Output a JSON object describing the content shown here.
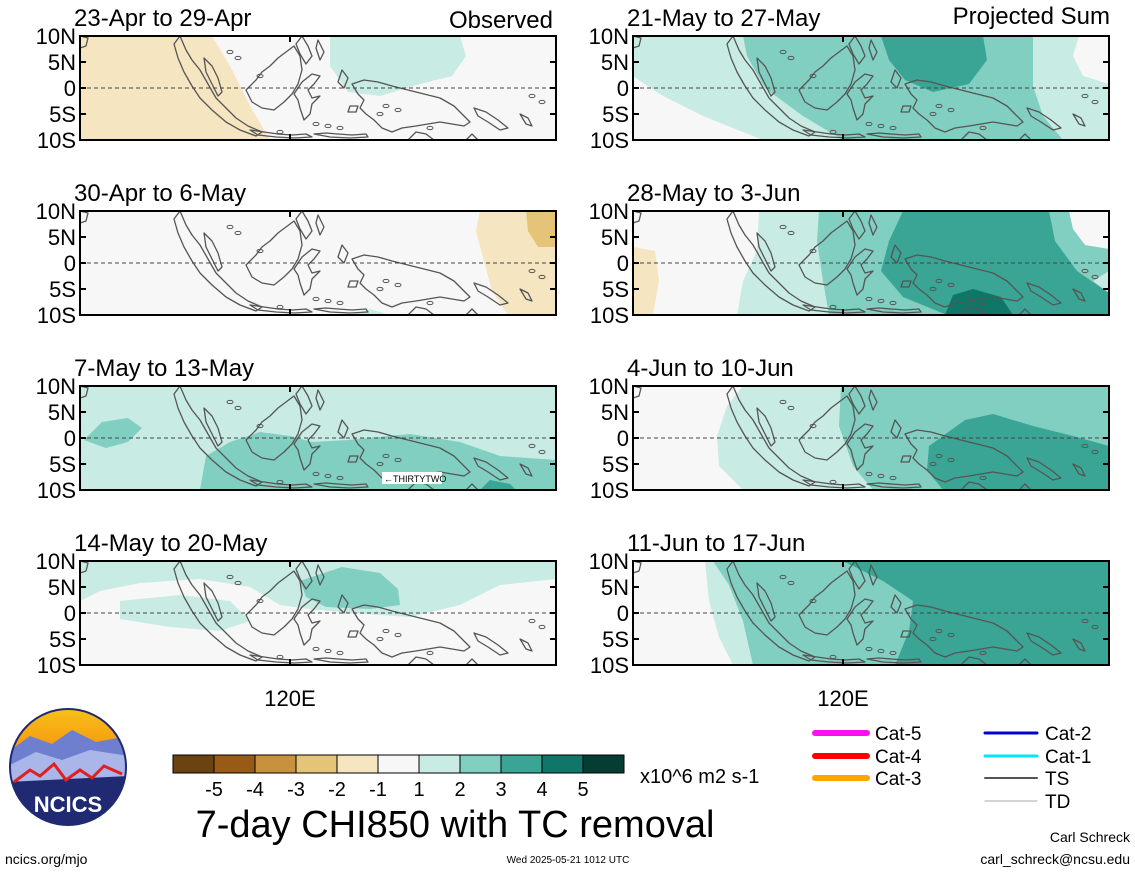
{
  "chart_data": {
    "type": "heatmap",
    "title": "7-day CHI850 with TC removal",
    "variable": "CHI850",
    "units": "x10^6 m2 s-1",
    "colorbar": {
      "ticks": [
        "-5",
        "-4",
        "-3",
        "-2",
        "-1",
        "1",
        "2",
        "3",
        "4",
        "5"
      ],
      "colors": [
        "#6a4311",
        "#975b15",
        "#c8913e",
        "#e5c47a",
        "#f5e5c0",
        "#f7f7f7",
        "#c8ebe3",
        "#80cfc0",
        "#3aa595",
        "#0f7668",
        "#053d33"
      ]
    },
    "lat_ticks": [
      "10N",
      "5N",
      "0",
      "5S",
      "10S"
    ],
    "lon_tick": "120E",
    "region": "Maritime Continent",
    "column_labels": {
      "observed": "Observed",
      "projected": "Projected Sum"
    },
    "panels": [
      {
        "column": "observed",
        "period": "23-Apr to 29-Apr",
        "summary": "negative (-1 to -2) west of 105E; weak positive (1-2) over 125E-145E north of equator; near zero elsewhere"
      },
      {
        "column": "observed",
        "period": "30-Apr to 6-May",
        "summary": "near zero over most of domain; negative (-1 to -3) east of 150E"
      },
      {
        "column": "observed",
        "period": "7-May to 13-May",
        "summary": "positive 1-2 over most of domain; 2-3 south of equator 110E-155E",
        "annotation": "THIRTYTWO"
      },
      {
        "column": "observed",
        "period": "14-May to 20-May",
        "summary": "weak positive 1-2 over much of domain; 2-3 near 130E-140E north of equator"
      },
      {
        "column": "projected",
        "period": "21-May to 27-May",
        "summary": "positive 1-3 across domain; 3-4 centered near 135E-145E north of equator"
      },
      {
        "column": "projected",
        "period": "28-May to 3-Jun",
        "summary": "positive 2-4 east of 120E; 4-5 near 140E south of equator; weak negative west of 100E"
      },
      {
        "column": "projected",
        "period": "4-Jun to 10-Jun",
        "summary": "positive 1-3 over most of domain; 3-4 east of 135E south of equator"
      },
      {
        "column": "projected",
        "period": "11-Jun to 17-Jun",
        "summary": "positive 1-4; 3-4 east of 125E"
      }
    ],
    "tc_legend": [
      {
        "label": "Cat-5",
        "color": "#ff10f0"
      },
      {
        "label": "Cat-4",
        "color": "#ff0000"
      },
      {
        "label": "Cat-3",
        "color": "#ffa500"
      },
      {
        "label": "Cat-2",
        "color": "#0000cc"
      },
      {
        "label": "Cat-1",
        "color": "#00e5ff"
      },
      {
        "label": "TS",
        "color": "#555555"
      },
      {
        "label": "TD",
        "color": "#aaaaaa"
      }
    ]
  },
  "footer": {
    "logo_text": "NCICS",
    "url": "ncics.org/mjo",
    "timestamp": "Wed 2025-05-21 1012 UTC",
    "author": "Carl Schreck",
    "email": "carl_schreck@ncsu.edu"
  }
}
